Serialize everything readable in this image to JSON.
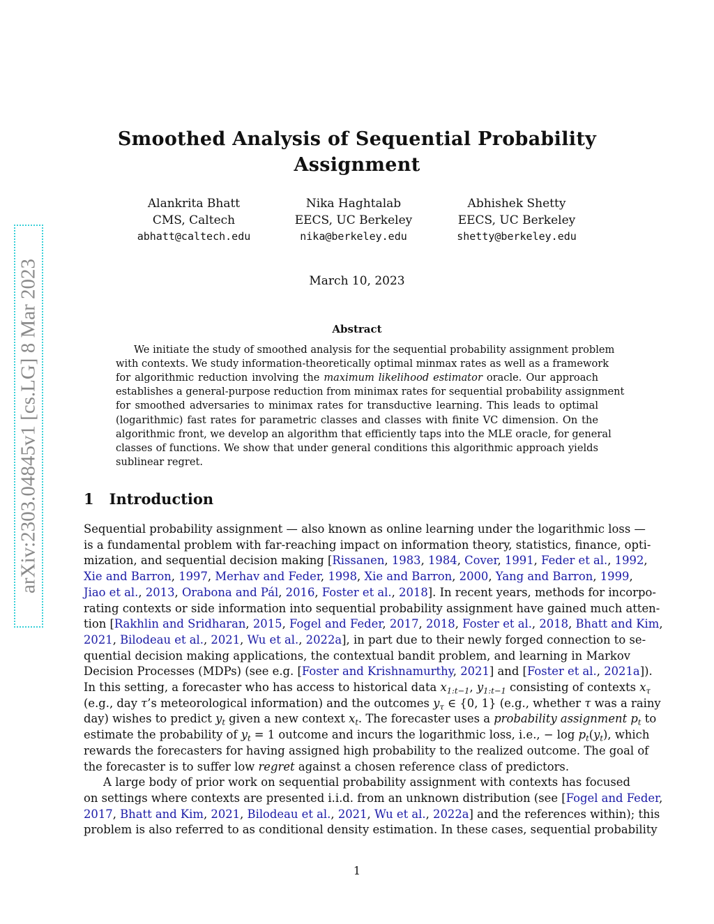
{
  "stamp": "arXiv:2303.04845v1  [cs.LG]  8 Mar 2023",
  "title": [
    "Smoothed Analysis of Sequential Probability",
    "Assignment"
  ],
  "authors": [
    {
      "name": "Alankrita Bhatt",
      "affil": "CMS, Caltech",
      "email": "abhatt@caltech.edu"
    },
    {
      "name": "Nika Haghtalab",
      "affil": "EECS, UC Berkeley",
      "email": "nika@berkeley.edu"
    },
    {
      "name": "Abhishek Shetty",
      "affil": "EECS, UC Berkeley",
      "email": "shetty@berkeley.edu"
    }
  ],
  "date": "March 10, 2023",
  "abstract_heading": "Abstract",
  "abstract_lines": [
    [
      {
        "t": "We initiate the study of smoothed analysis for the sequential probability assignment problem"
      }
    ],
    [
      {
        "t": "with contexts. We study information-theoretically optimal minmax rates as well as a framework"
      }
    ],
    [
      {
        "t": "for algorithmic reduction involving the "
      },
      {
        "t": "maximum likelihood estimator",
        "k": "i"
      },
      {
        "t": " oracle.  Our approach"
      }
    ],
    [
      {
        "t": "establishes a general-purpose reduction from minimax rates for sequential probability assignment"
      }
    ],
    [
      {
        "t": "for smoothed adversaries to minimax rates for transductive learning.  This leads to optimal"
      }
    ],
    [
      {
        "t": "(logarithmic) fast rates for parametric classes and classes with finite VC dimension.  On the"
      }
    ],
    [
      {
        "t": "algorithmic front, we develop an algorithm that efficiently taps into the MLE oracle, for general"
      }
    ],
    [
      {
        "t": "classes of functions.  We show that under general conditions this algorithmic approach yields"
      }
    ],
    [
      {
        "t": "sublinear regret."
      }
    ]
  ],
  "section": {
    "number": "1",
    "title": "Introduction"
  },
  "intro_lines": [
    [
      {
        "t": "Sequential probability assignment — also known as online learning under the logarithmic loss —"
      }
    ],
    [
      {
        "t": "is a fundamental problem with far-reaching impact on information theory, statistics, finance, opti-"
      }
    ],
    [
      {
        "t": "mization, and sequential decision making ["
      },
      {
        "t": "Rissanen",
        "k": "c"
      },
      {
        "t": ", "
      },
      {
        "t": "1983",
        "k": "c"
      },
      {
        "t": ", "
      },
      {
        "t": "1984",
        "k": "c"
      },
      {
        "t": ", "
      },
      {
        "t": "Cover",
        "k": "c"
      },
      {
        "t": ", "
      },
      {
        "t": "1991",
        "k": "c"
      },
      {
        "t": ", "
      },
      {
        "t": "Feder et al.",
        "k": "c"
      },
      {
        "t": ", "
      },
      {
        "t": "1992",
        "k": "c"
      },
      {
        "t": ","
      }
    ],
    [
      {
        "t": "Xie and Barron",
        "k": "c"
      },
      {
        "t": ", "
      },
      {
        "t": "1997",
        "k": "c"
      },
      {
        "t": ", "
      },
      {
        "t": "Merhav and Feder",
        "k": "c"
      },
      {
        "t": ", "
      },
      {
        "t": "1998",
        "k": "c"
      },
      {
        "t": ", "
      },
      {
        "t": "Xie and Barron",
        "k": "c"
      },
      {
        "t": ", "
      },
      {
        "t": "2000",
        "k": "c"
      },
      {
        "t": ", "
      },
      {
        "t": "Yang and Barron",
        "k": "c"
      },
      {
        "t": ", "
      },
      {
        "t": "1999",
        "k": "c"
      },
      {
        "t": ","
      }
    ],
    [
      {
        "t": "Jiao et al.",
        "k": "c"
      },
      {
        "t": ", "
      },
      {
        "t": "2013",
        "k": "c"
      },
      {
        "t": ", "
      },
      {
        "t": "Orabona and Pál",
        "k": "c"
      },
      {
        "t": ", "
      },
      {
        "t": "2016",
        "k": "c"
      },
      {
        "t": ", "
      },
      {
        "t": "Foster et al.",
        "k": "c"
      },
      {
        "t": ", "
      },
      {
        "t": "2018",
        "k": "c"
      },
      {
        "t": "]. In recent years, methods for incorpo-"
      }
    ],
    [
      {
        "t": "rating contexts or side information into sequential probability assignment have gained much atten-"
      }
    ],
    [
      {
        "t": "tion ["
      },
      {
        "t": "Rakhlin and Sridharan",
        "k": "c"
      },
      {
        "t": ", "
      },
      {
        "t": "2015",
        "k": "c"
      },
      {
        "t": ", "
      },
      {
        "t": "Fogel and Feder",
        "k": "c"
      },
      {
        "t": ", "
      },
      {
        "t": "2017",
        "k": "c"
      },
      {
        "t": ", "
      },
      {
        "t": "2018",
        "k": "c"
      },
      {
        "t": ", "
      },
      {
        "t": "Foster et al.",
        "k": "c"
      },
      {
        "t": ", "
      },
      {
        "t": "2018",
        "k": "c"
      },
      {
        "t": ", "
      },
      {
        "t": "Bhatt and Kim",
        "k": "c"
      },
      {
        "t": ","
      }
    ],
    [
      {
        "t": "2021",
        "k": "c"
      },
      {
        "t": ", "
      },
      {
        "t": "Bilodeau et al.",
        "k": "c"
      },
      {
        "t": ", "
      },
      {
        "t": "2021",
        "k": "c"
      },
      {
        "t": ", "
      },
      {
        "t": "Wu et al.",
        "k": "c"
      },
      {
        "t": ", "
      },
      {
        "t": "2022a",
        "k": "c"
      },
      {
        "t": "], in part due to their newly forged connection to se-"
      }
    ],
    [
      {
        "t": "quential decision making applications, the contextual bandit problem, and learning in Markov"
      }
    ],
    [
      {
        "t": "Decision Processes (MDPs) (see e.g. ["
      },
      {
        "t": "Foster and Krishnamurthy",
        "k": "c"
      },
      {
        "t": ", "
      },
      {
        "t": "2021",
        "k": "c"
      },
      {
        "t": "] and ["
      },
      {
        "t": "Foster et al.",
        "k": "c"
      },
      {
        "t": ", "
      },
      {
        "t": "2021a",
        "k": "c"
      },
      {
        "t": "])."
      }
    ],
    [
      {
        "t": "In this setting, a forecaster who has access to historical data "
      },
      {
        "t": "x",
        "k": "m"
      },
      {
        "t": "1:t−1",
        "k": "s"
      },
      {
        "t": ", "
      },
      {
        "t": "y",
        "k": "m"
      },
      {
        "t": "1:t−1",
        "k": "s"
      },
      {
        "t": " consisting of contexts "
      },
      {
        "t": "x",
        "k": "m"
      },
      {
        "t": "τ",
        "k": "s"
      }
    ],
    [
      {
        "t": "(e.g., day "
      },
      {
        "t": "τ",
        "k": "m"
      },
      {
        "t": "’s meteorological information) and the outcomes "
      },
      {
        "t": "y",
        "k": "m"
      },
      {
        "t": "τ",
        "k": "s"
      },
      {
        "t": " ∈ {0, 1} (e.g., whether "
      },
      {
        "t": "τ",
        "k": "m"
      },
      {
        "t": " was a rainy"
      }
    ],
    [
      {
        "t": "day) wishes to predict "
      },
      {
        "t": "y",
        "k": "m"
      },
      {
        "t": "t",
        "k": "s"
      },
      {
        "t": " given a new context "
      },
      {
        "t": "x",
        "k": "m"
      },
      {
        "t": "t",
        "k": "s"
      },
      {
        "t": ". The forecaster uses a "
      },
      {
        "t": "probability assignment",
        "k": "i"
      },
      {
        "t": " "
      },
      {
        "t": "p",
        "k": "m"
      },
      {
        "t": "t",
        "k": "s"
      },
      {
        "t": " to"
      }
    ],
    [
      {
        "t": "estimate the probability of "
      },
      {
        "t": "y",
        "k": "m"
      },
      {
        "t": "t",
        "k": "s"
      },
      {
        "t": " = 1 outcome and incurs the logarithmic loss, i.e., − log "
      },
      {
        "t": "p",
        "k": "m"
      },
      {
        "t": "t",
        "k": "s"
      },
      {
        "t": "("
      },
      {
        "t": "y",
        "k": "m"
      },
      {
        "t": "t",
        "k": "s"
      },
      {
        "t": "), which"
      }
    ],
    [
      {
        "t": "rewards the forecasters for having assigned high probability to the realized outcome.  The goal of"
      }
    ],
    [
      {
        "t": "the forecaster is to suffer low "
      },
      {
        "t": "regret",
        "k": "i"
      },
      {
        "t": " against a chosen reference class of predictors."
      }
    ],
    [
      {
        "t": "A large body of prior work on sequential probability assignment with contexts has focused"
      }
    ],
    [
      {
        "t": "on settings where contexts are presented i.i.d. from an unknown distribution (see ["
      },
      {
        "t": "Fogel and Feder",
        "k": "c"
      },
      {
        "t": ","
      }
    ],
    [
      {
        "t": "2017",
        "k": "c"
      },
      {
        "t": ", "
      },
      {
        "t": "Bhatt and Kim",
        "k": "c"
      },
      {
        "t": ", "
      },
      {
        "t": "2021",
        "k": "c"
      },
      {
        "t": ", "
      },
      {
        "t": "Bilodeau et al.",
        "k": "c"
      },
      {
        "t": ", "
      },
      {
        "t": "2021",
        "k": "c"
      },
      {
        "t": ", "
      },
      {
        "t": "Wu et al.",
        "k": "c"
      },
      {
        "t": ", "
      },
      {
        "t": "2022a",
        "k": "c"
      },
      {
        "t": "] and the references within); this"
      }
    ],
    [
      {
        "t": "problem is also referred to as conditional density estimation. In these cases, sequential probability"
      }
    ]
  ],
  "page_number": "1",
  "colors": {
    "link": "#1a1aa6",
    "stamp_border": "#38d0d8",
    "stamp_text": "#8a8a8a"
  }
}
